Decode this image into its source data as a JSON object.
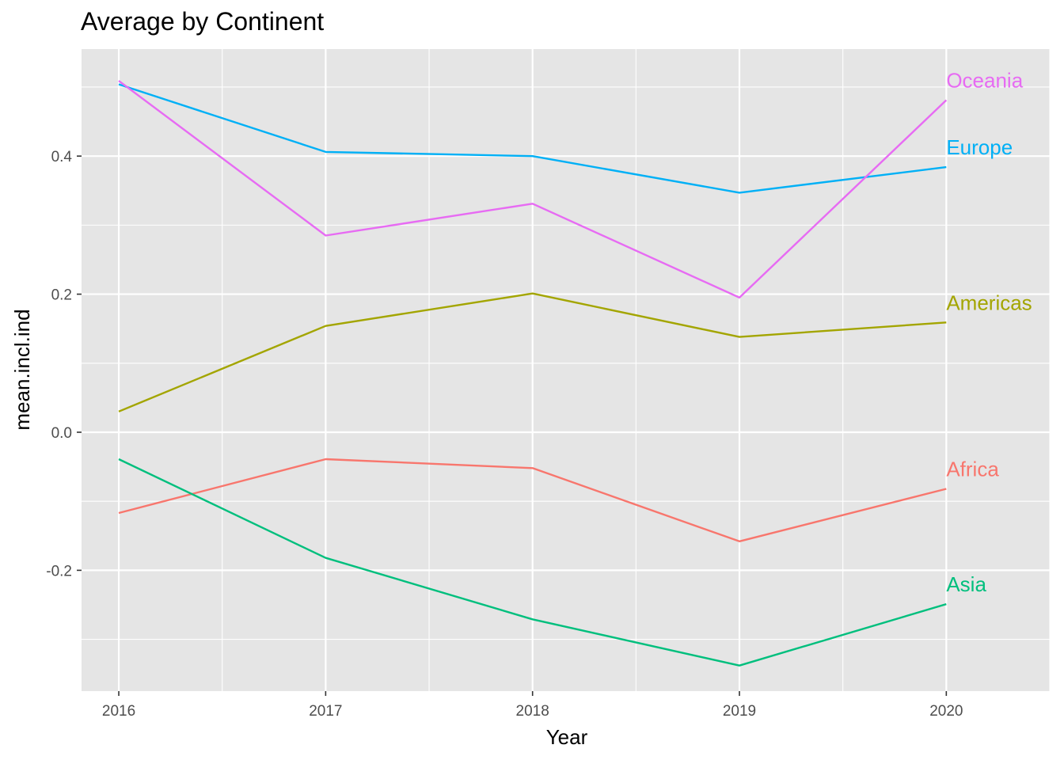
{
  "chart_data": {
    "type": "line",
    "title": "Average by Continent",
    "xlabel": "Year",
    "ylabel": "mean.incl.ind",
    "x": [
      2016,
      2017,
      2018,
      2019,
      2020
    ],
    "x_tick_labels": [
      "2016",
      "2017",
      "2018",
      "2019",
      "2020"
    ],
    "xlim": [
      2015.82,
      2020.5
    ],
    "ylim": [
      -0.375,
      0.555
    ],
    "y_ticks": [
      -0.2,
      0.0,
      0.2,
      0.4
    ],
    "y_tick_labels": [
      "-0.2",
      "0.0",
      "0.2",
      "0.4"
    ],
    "grid": true,
    "legend": "direct labels at line ends",
    "panel_background": "#E5E5E5",
    "series": [
      {
        "name": "Africa",
        "color": "#F8766D",
        "values": [
          -0.117,
          -0.039,
          -0.052,
          -0.158,
          -0.082
        ]
      },
      {
        "name": "Americas",
        "color": "#A3A500",
        "values": [
          0.03,
          0.154,
          0.201,
          0.138,
          0.159
        ]
      },
      {
        "name": "Asia",
        "color": "#00BF7D",
        "values": [
          -0.039,
          -0.182,
          -0.271,
          -0.338,
          -0.249
        ]
      },
      {
        "name": "Europe",
        "color": "#00B0F6",
        "values": [
          0.504,
          0.406,
          0.4,
          0.347,
          0.384
        ]
      },
      {
        "name": "Oceania",
        "color": "#E76BF3",
        "values": [
          0.509,
          0.285,
          0.331,
          0.195,
          0.481
        ]
      }
    ]
  }
}
